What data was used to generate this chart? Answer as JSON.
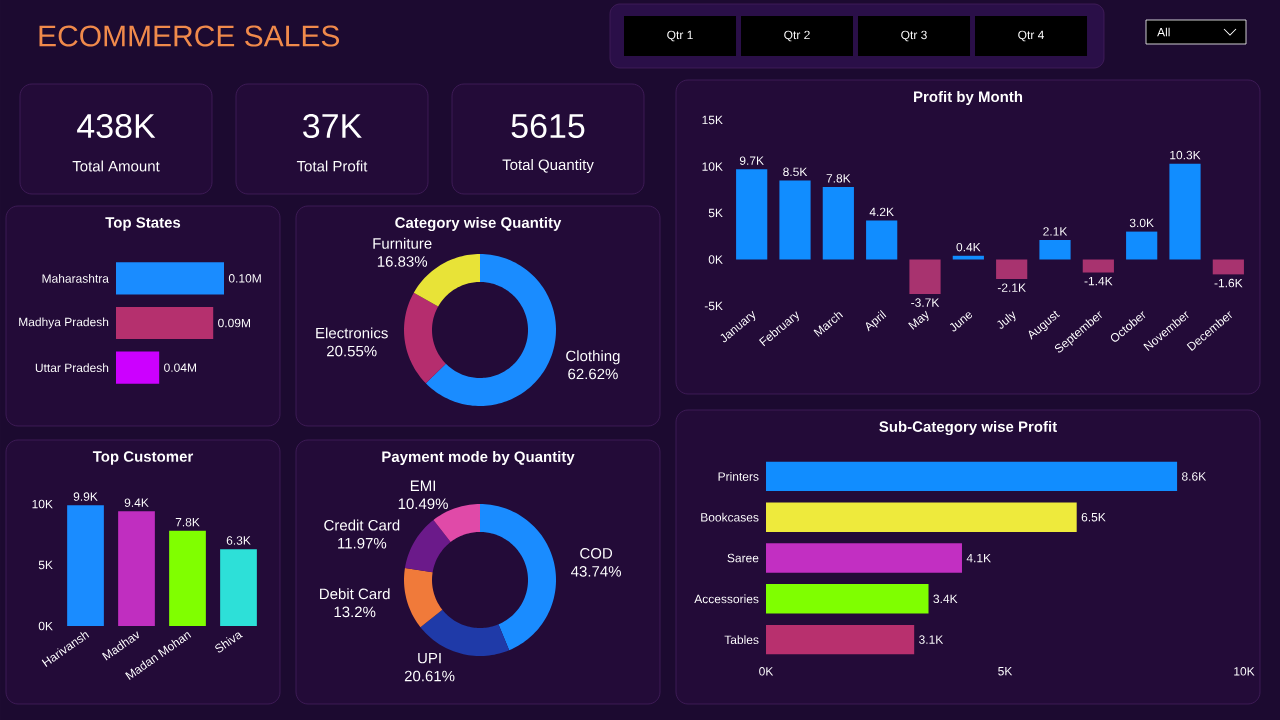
{
  "chart_data": [
    {
      "type": "other",
      "title": "ECOMMERCE SALES",
      "annotations": [
        "Qtr 1",
        "Qtr 2",
        "Qtr 3",
        "Qtr 4",
        "All"
      ]
    },
    {
      "type": "other",
      "annotations": [
        "438K",
        "Total Amount",
        "37K",
        "Total Profit",
        "5615",
        "Total Quantity"
      ]
    },
    {
      "type": "bar",
      "title": "Profit by Month",
      "categories": [
        "January",
        "February",
        "March",
        "April",
        "May",
        "June",
        "July",
        "August",
        "September",
        "October",
        "November",
        "December"
      ],
      "values": [
        9700,
        8500,
        7800,
        4200,
        -3700,
        400,
        -2100,
        2100,
        -1400,
        3000,
        10300,
        -1600
      ],
      "value_labels": [
        "9.7K",
        "8.5K",
        "7.8K",
        "4.2K",
        "-3.7K",
        "0.4K",
        "-2.1K",
        "2.1K",
        "-1.4K",
        "3.0K",
        "10.3K",
        "-1.6K"
      ],
      "colors": [
        "#118dff",
        "#118dff",
        "#118dff",
        "#118dff",
        "#a8336f",
        "#118dff",
        "#a8336f",
        "#118dff",
        "#a8336f",
        "#118dff",
        "#118dff",
        "#a8336f"
      ],
      "ylim": [
        -5000,
        15000
      ],
      "yticks": [
        {
          "value": -5000,
          "label": "-5K"
        },
        {
          "value": 0,
          "label": "0K"
        },
        {
          "value": 5000,
          "label": "5K"
        },
        {
          "value": 10000,
          "label": "10K"
        },
        {
          "value": 15000,
          "label": "15K"
        }
      ]
    },
    {
      "type": "bar",
      "orientation": "horizontal",
      "title": "Top States",
      "categories": [
        "Maharashtra",
        "Madhya Pradesh",
        "Uttar Pradesh"
      ],
      "values": [
        0.1,
        0.09,
        0.04
      ],
      "value_labels": [
        "0.10M",
        "0.09M",
        "0.04M"
      ],
      "colors": [
        "#1a8cff",
        "#b5306e",
        "#cc00ff"
      ]
    },
    {
      "type": "donut",
      "title": "Category wise Quantity",
      "categories": [
        "Clothing",
        "Electronics",
        "Furniture"
      ],
      "values": [
        62.62,
        20.55,
        16.83
      ],
      "value_labels": [
        "62.62%",
        "20.55%",
        "16.83%"
      ],
      "colors": [
        "#1a8cff",
        "#b52d6e",
        "#e8e337"
      ]
    },
    {
      "type": "bar",
      "title": "Top Customer",
      "categories": [
        "Harivansh",
        "Madhav",
        "Madan Mohan",
        "Shiva"
      ],
      "values": [
        9900,
        9400,
        7800,
        6300
      ],
      "value_labels": [
        "9.9K",
        "9.4K",
        "7.8K",
        "6.3K"
      ],
      "colors": [
        "#1a8cff",
        "#c02ec0",
        "#80ff00",
        "#2de0d8"
      ],
      "ylim": [
        0,
        10000
      ],
      "yticks": [
        {
          "value": 0,
          "label": "0K"
        },
        {
          "value": 5000,
          "label": "5K"
        },
        {
          "value": 10000,
          "label": "10K"
        }
      ]
    },
    {
      "type": "donut",
      "title": "Payment mode by Quantity",
      "categories": [
        "COD",
        "UPI",
        "Debit Card",
        "Credit Card",
        "EMI"
      ],
      "values": [
        43.74,
        20.61,
        13.2,
        11.97,
        10.49
      ],
      "value_labels": [
        "43.74%",
        "20.61%",
        "13.2%",
        "11.97%",
        "10.49%"
      ],
      "colors": [
        "#1a8cff",
        "#1f3aa8",
        "#f07a3a",
        "#6b1a8a",
        "#e04aa8"
      ]
    },
    {
      "type": "bar",
      "orientation": "horizontal",
      "title": "Sub-Category wise Profit",
      "categories": [
        "Printers",
        "Bookcases",
        "Saree",
        "Accessories",
        "Tables"
      ],
      "values": [
        8600,
        6500,
        4100,
        3400,
        3100
      ],
      "value_labels": [
        "8.6K",
        "6.5K",
        "4.1K",
        "3.4K",
        "3.1K"
      ],
      "colors": [
        "#118dff",
        "#eeea3c",
        "#c22fc2",
        "#7fff00",
        "#b8306e"
      ],
      "xlim": [
        0,
        10000
      ],
      "xticks": [
        {
          "value": 0,
          "label": "0K"
        },
        {
          "value": 5000,
          "label": "5K"
        },
        {
          "value": 10000,
          "label": "10K"
        }
      ]
    }
  ]
}
